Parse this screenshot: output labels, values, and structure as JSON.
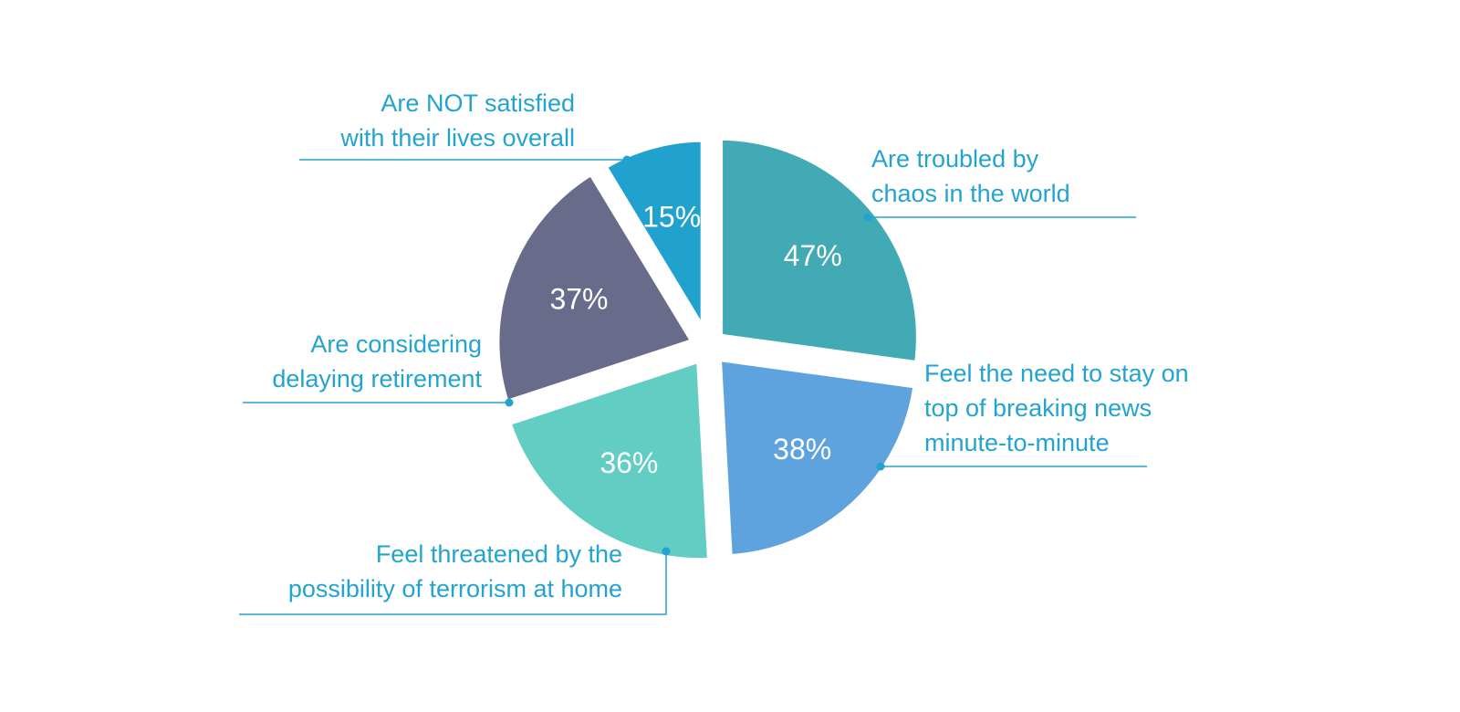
{
  "chart_data": {
    "type": "pie",
    "title": "",
    "label_color": "#23a3cf",
    "slices": [
      {
        "label_lines": [
          "Are troubled by",
          "chaos in the world"
        ],
        "value": 47,
        "value_label": "47%",
        "color": "#41aab5"
      },
      {
        "label_lines": [
          "Feel the need to stay on",
          "top of breaking news",
          "minute-to-minute"
        ],
        "value": 38,
        "value_label": "38%",
        "color": "#5fa3de"
      },
      {
        "label_lines": [
          "Feel threatened by the",
          "possibility of terrorism at home"
        ],
        "value": 36,
        "value_label": "36%",
        "color": "#62cdc3"
      },
      {
        "label_lines": [
          "Are considering",
          "delaying retirement"
        ],
        "value": 37,
        "value_label": "37%",
        "color": "#696b8a"
      },
      {
        "label_lines": [
          "Are NOT satisfied",
          "with their lives overall"
        ],
        "value": 15,
        "value_label": "15%",
        "color": "#21a1cd"
      }
    ]
  }
}
